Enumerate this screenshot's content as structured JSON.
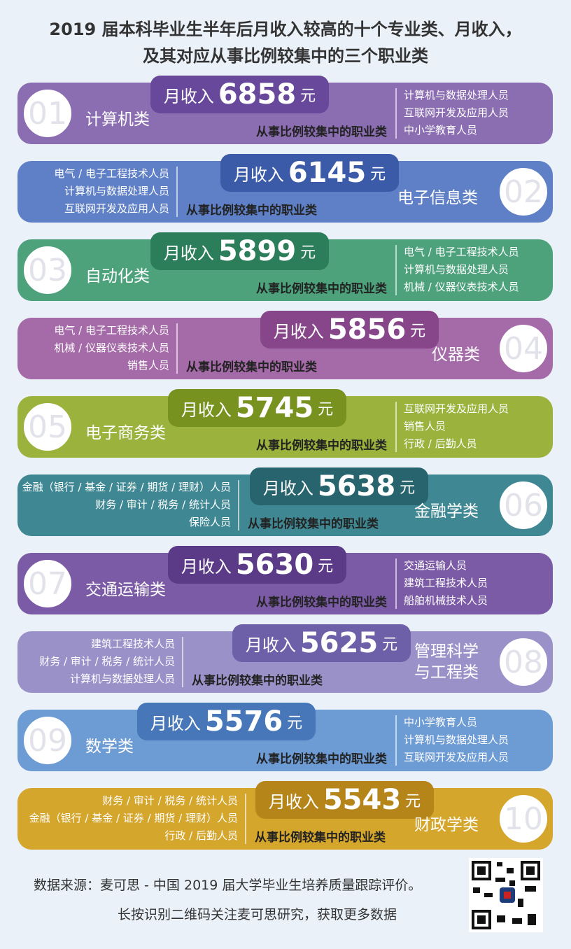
{
  "header": {
    "title_lines": [
      "2019 届本科毕业生半年后月收入较高的十个专业类、月收入，",
      "及其对应从事比例较集中的三个职业类"
    ]
  },
  "labels": {
    "income": "月收入",
    "unit": "元",
    "jobs_caption": "从事比例较集中的职业类"
  },
  "items": [
    {
      "rank": "01",
      "major": [
        "计算机类"
      ],
      "income": "6858",
      "jobs": [
        "计算机与数据处理人员",
        "互联网开发及应用人员",
        "中小学教育人员"
      ]
    },
    {
      "rank": "02",
      "major": [
        "电子信息类"
      ],
      "income": "6145",
      "jobs": [
        "电气 / 电子工程技术人员",
        "计算机与数据处理人员",
        "互联网开发及应用人员"
      ]
    },
    {
      "rank": "03",
      "major": [
        "自动化类"
      ],
      "income": "5899",
      "jobs": [
        "电气 / 电子工程技术人员",
        "计算机与数据处理人员",
        "机械 / 仪器仪表技术人员"
      ]
    },
    {
      "rank": "04",
      "major": [
        "仪器类"
      ],
      "income": "5856",
      "jobs": [
        "电气 / 电子工程技术人员",
        "机械 / 仪器仪表技术人员",
        "销售人员"
      ]
    },
    {
      "rank": "05",
      "major": [
        "电子商务类"
      ],
      "income": "5745",
      "jobs": [
        "互联网开发及应用人员",
        "销售人员",
        "行政 / 后勤人员"
      ]
    },
    {
      "rank": "06",
      "major": [
        "金融学类"
      ],
      "income": "5638",
      "jobs": [
        "金融（银行 / 基金 / 证券 / 期货 / 理财）人员",
        "财务 / 审计 / 税务 / 统计人员",
        "保险人员"
      ]
    },
    {
      "rank": "07",
      "major": [
        "交通运输类"
      ],
      "income": "5630",
      "jobs": [
        "交通运输人员",
        "建筑工程技术人员",
        "船舶机械技术人员"
      ]
    },
    {
      "rank": "08",
      "major": [
        "管理科学",
        "与工程类"
      ],
      "income": "5625",
      "jobs": [
        "建筑工程技术人员",
        "财务 / 审计 / 税务 / 统计人员",
        "计算机与数据处理人员"
      ]
    },
    {
      "rank": "09",
      "major": [
        "数学类"
      ],
      "income": "5576",
      "jobs": [
        "中小学教育人员",
        "计算机与数据处理人员",
        "互联网开发及应用人员"
      ]
    },
    {
      "rank": "10",
      "major": [
        "财政学类"
      ],
      "income": "5543",
      "jobs": [
        "财务 / 审计 / 税务 / 统计人员",
        "金融（银行 / 基金 / 证券 / 期货 / 理财）人员",
        "行政 / 后勤人员"
      ]
    }
  ],
  "footer": {
    "source": "数据来源：麦可思 - 中国 2019 届大学毕业生培养质量跟踪评价。",
    "cta": "长按识别二维码关注麦可思研究，获取更多数据"
  }
}
